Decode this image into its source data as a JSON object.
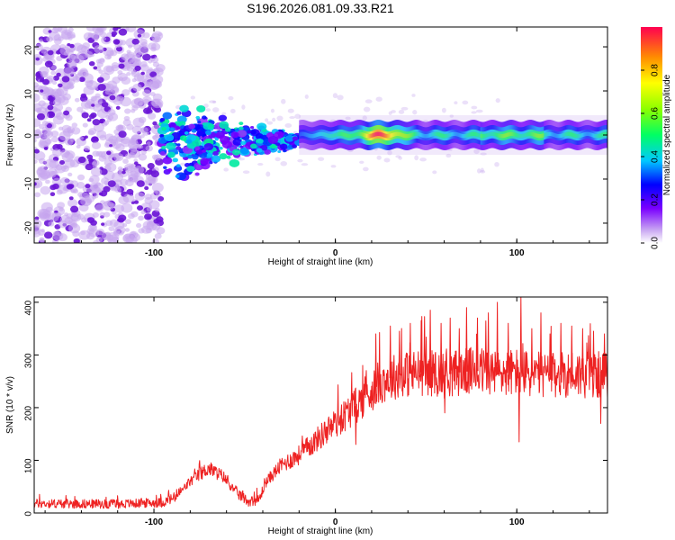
{
  "figure_title": "S196.2026.081.09.33.R21",
  "colors": {
    "snr_line": "#ee2222",
    "weak_purple": "#c7a6ef",
    "strong_purple": "#6a14d6",
    "axis": "#000000",
    "background": "#ffffff"
  },
  "colormap_name": "rainbow",
  "chart_data": [
    {
      "type": "heatmap",
      "name": "spectrogram",
      "xlabel": "Height of straight line (km)",
      "ylabel": "Frequency (Hz)",
      "xlim": [
        -166,
        150
      ],
      "ylim": [
        -24.5,
        24.5
      ],
      "xticks": [
        -100,
        0,
        100
      ],
      "xtick_labels": [
        "-100",
        "0",
        "100"
      ],
      "yticks": [
        20,
        10,
        0,
        -10,
        -20
      ],
      "ytick_labels": [
        "20",
        "10",
        "0",
        "-10",
        "-20"
      ],
      "noise_region_x": [
        -166,
        -96
      ],
      "transition_region_x": [
        -96,
        -20
      ],
      "tone_region_x": [
        -20,
        150
      ],
      "tone_peak": {
        "x_center": 25,
        "amplitude": 1.0
      },
      "colorbar": {
        "label": "Normalized spectral amplitude",
        "range": [
          0.0,
          1.0
        ],
        "ticks": [
          0.0,
          0.2,
          0.4,
          0.6,
          0.8
        ],
        "tick_labels": [
          "0.0",
          "0.2",
          "0.4",
          "0.6",
          "0.8"
        ]
      }
    },
    {
      "type": "line",
      "name": "snr",
      "xlabel": "Height of straight line (km)",
      "ylabel": "SNR (10 * v/v)",
      "xlim": [
        -166,
        150
      ],
      "ylim": [
        0,
        410
      ],
      "xticks": [
        -100,
        0,
        100
      ],
      "xtick_labels": [
        "-100",
        "0",
        "100"
      ],
      "yticks": [
        0,
        100,
        200,
        300,
        400
      ],
      "ytick_labels": [
        "0",
        "100",
        "200",
        "300",
        "400"
      ],
      "series": [
        {
          "name": "SNR",
          "trend_x": [
            -166,
            -120,
            -95,
            -88,
            -80,
            -70,
            -62,
            -55,
            -48,
            -42,
            -38,
            -30,
            -20,
            -10,
            0,
            10,
            18,
            25,
            35,
            50,
            60,
            70,
            80,
            90,
            100,
            110,
            120,
            130,
            140,
            150
          ],
          "trend_y": [
            18,
            17,
            20,
            30,
            60,
            85,
            70,
            40,
            22,
            25,
            60,
            90,
            110,
            140,
            170,
            200,
            225,
            250,
            262,
            268,
            262,
            268,
            270,
            265,
            268,
            262,
            260,
            265,
            262,
            262
          ],
          "spikes": [
            {
              "x": 22,
              "y": 340
            },
            {
              "x": 30,
              "y": 355
            },
            {
              "x": 35,
              "y": 345
            },
            {
              "x": 41,
              "y": 360
            },
            {
              "x": 47,
              "y": 365
            },
            {
              "x": 52,
              "y": 385
            },
            {
              "x": 58,
              "y": 360
            },
            {
              "x": 63,
              "y": 370
            },
            {
              "x": 68,
              "y": 350
            },
            {
              "x": 72,
              "y": 390
            },
            {
              "x": 78,
              "y": 370
            },
            {
              "x": 84,
              "y": 380
            },
            {
              "x": 89,
              "y": 400
            },
            {
              "x": 95,
              "y": 360
            },
            {
              "x": 102,
              "y": 410
            },
            {
              "x": 108,
              "y": 350
            },
            {
              "x": 113,
              "y": 380
            },
            {
              "x": 118,
              "y": 340
            },
            {
              "x": 124,
              "y": 360
            },
            {
              "x": 130,
              "y": 355
            },
            {
              "x": 136,
              "y": 350
            },
            {
              "x": 142,
              "y": 345
            },
            {
              "x": 148,
              "y": 340
            }
          ],
          "dips": [
            {
              "x": 60,
              "y": 190
            },
            {
              "x": 101,
              "y": 135
            },
            {
              "x": 146,
              "y": 170
            },
            {
              "x": 11,
              "y": 130
            }
          ]
        }
      ]
    }
  ]
}
